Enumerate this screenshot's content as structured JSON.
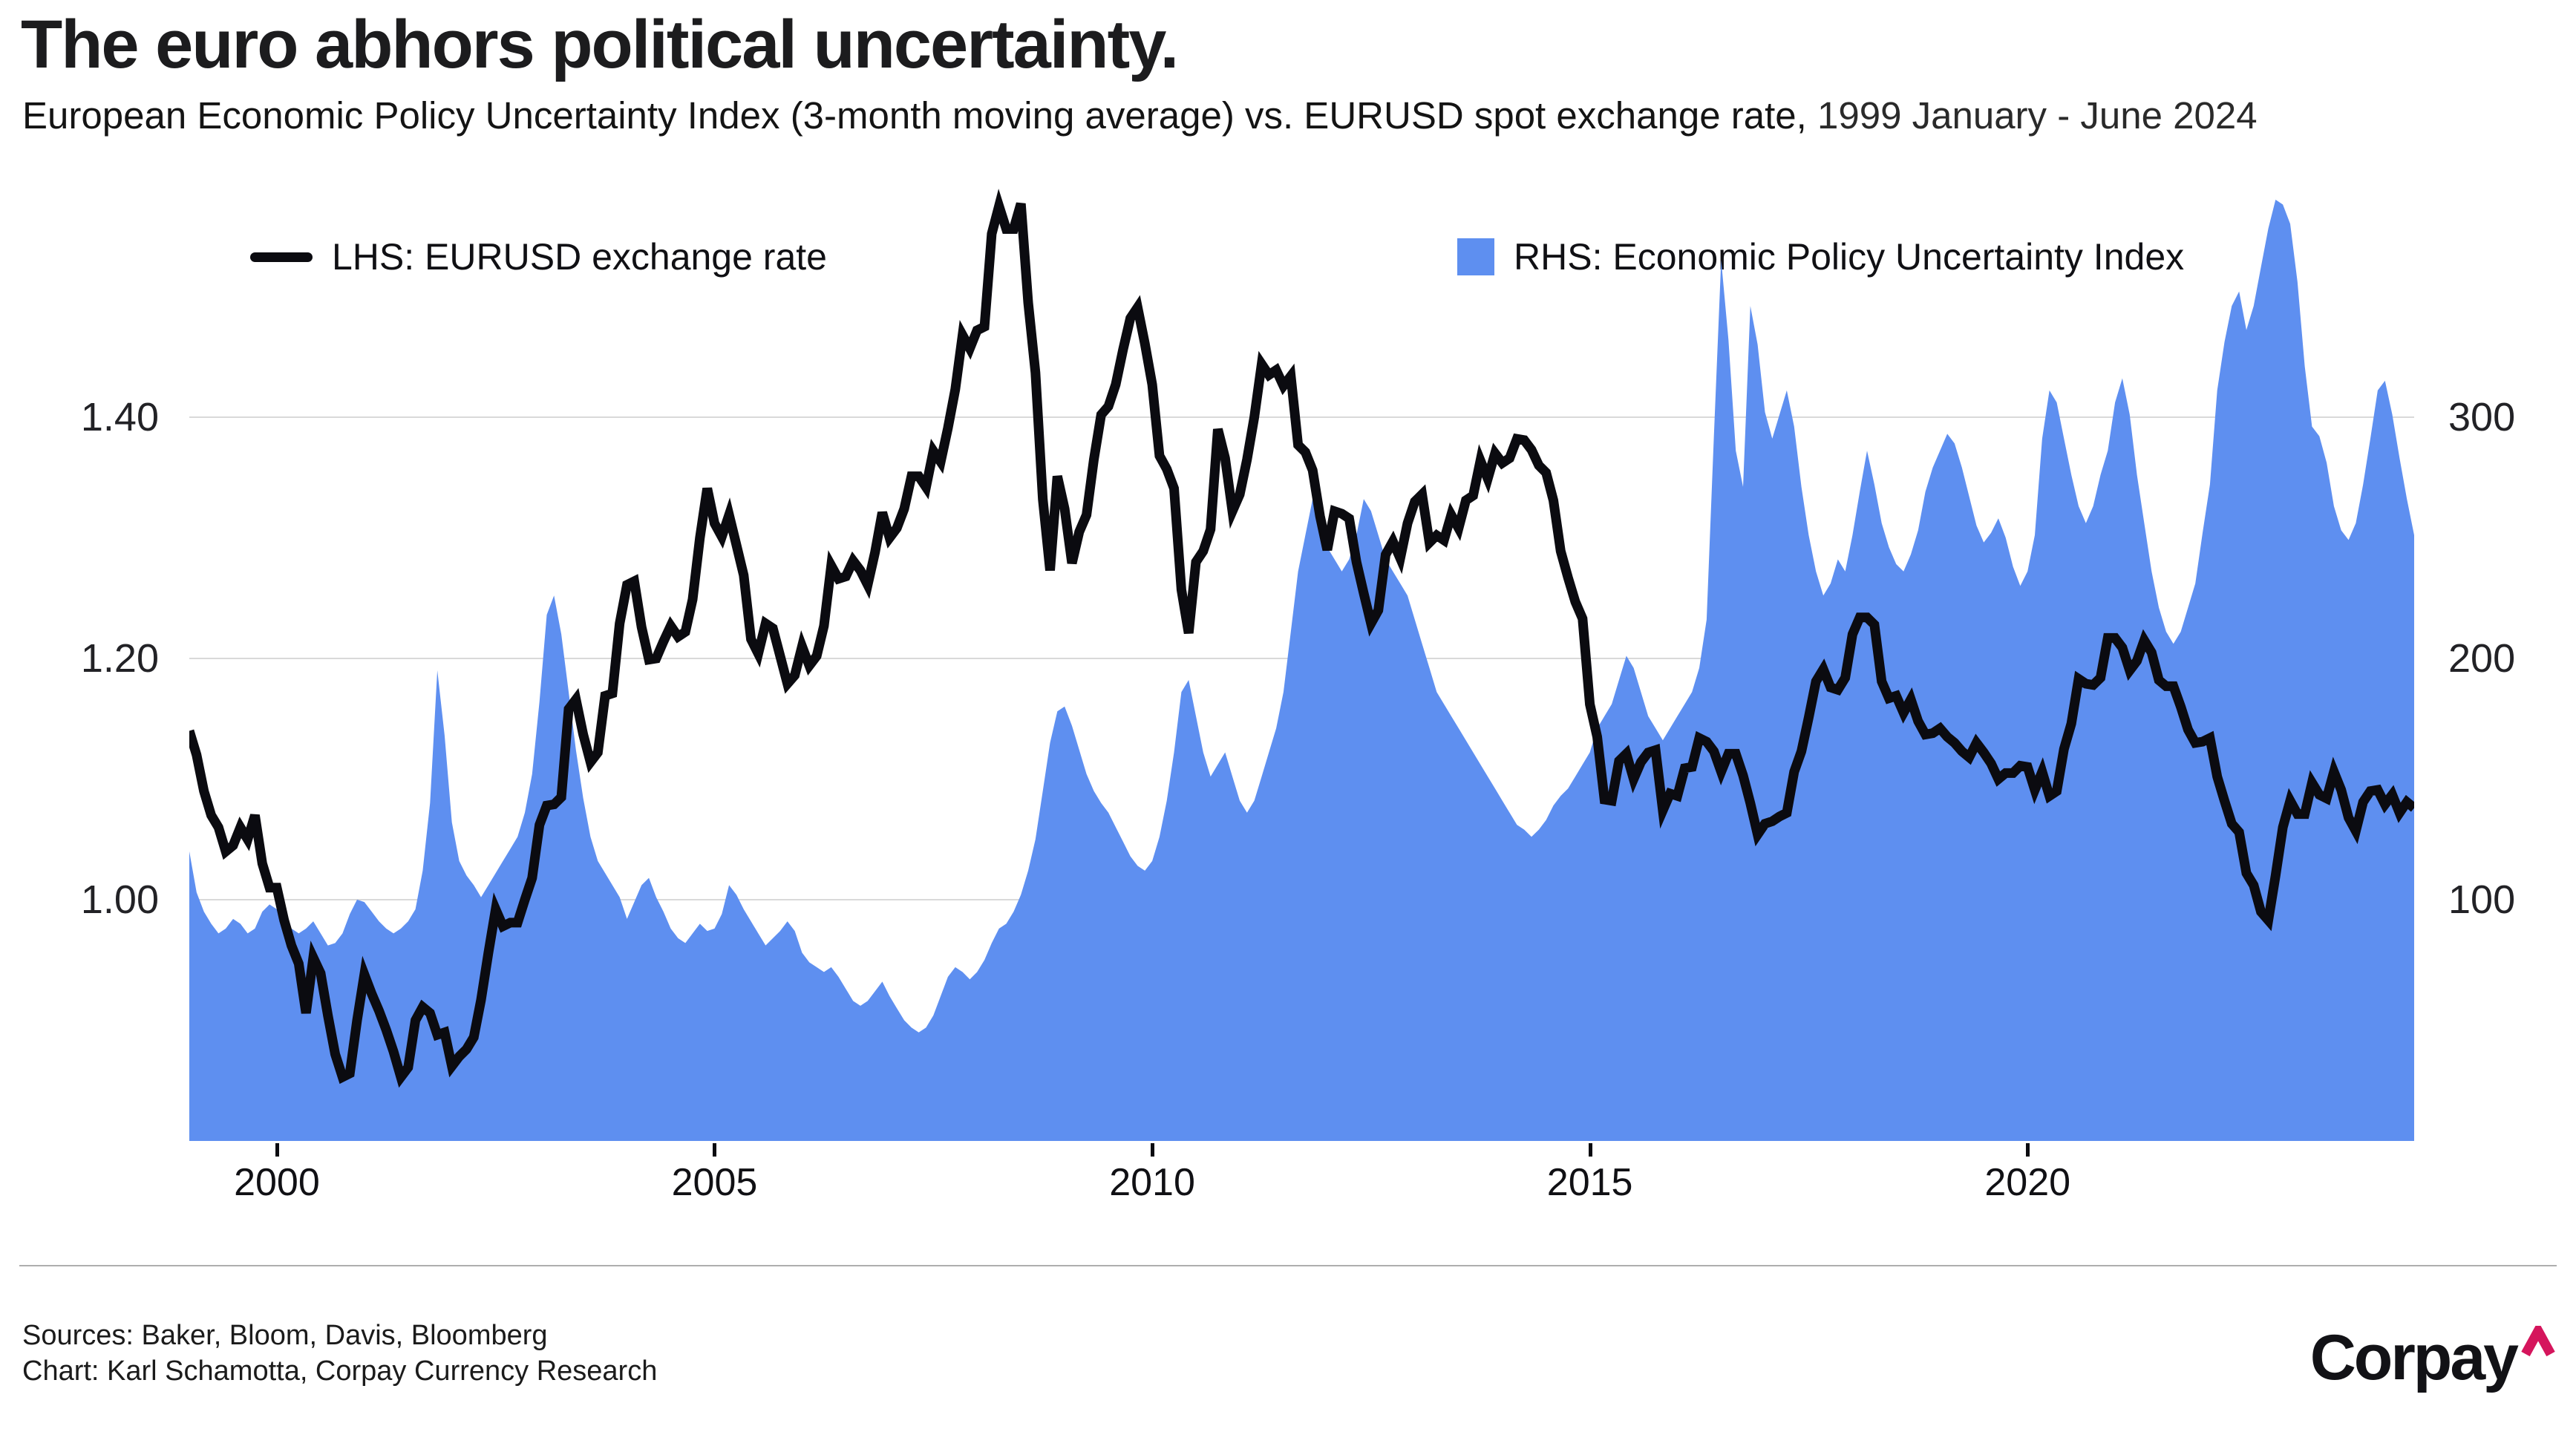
{
  "header": {
    "title": "The euro abhors political uncertainty.",
    "subtitle_main": "European Economic Policy Uncertainty Index (3-month moving average) vs. EURUSD spot exchange rate,",
    "subtitle_period": " 1999 January - June 2024"
  },
  "legend": {
    "lhs_label": "LHS: EURUSD exchange rate",
    "rhs_label": "RHS: Economic Policy Uncertainty Index"
  },
  "footer": {
    "sources": "Sources: Baker, Bloom, Davis, Bloomberg",
    "credit": "Chart: Karl Schamotta, Corpay Currency Research",
    "brand": "Corpay",
    "brand_caret_icon": "caret-up-icon"
  },
  "colors": {
    "area": "#5e8ff0",
    "line": "#0b0b10",
    "grid": "#d9d9d9",
    "separator": "#aeaeae",
    "brand_caret": "#d5155c",
    "text": "#1a1a1a"
  },
  "chart_data": {
    "type": "area+line",
    "title": "The euro abhors political uncertainty.",
    "subtitle": "European Economic Policy Uncertainty Index (3-month moving average) vs. EURUSD spot exchange rate, 1999 January - June 2024",
    "x_start": 1999.0,
    "x_end": 2024.4167,
    "points_per_year": 12,
    "grid": "horizontal-only",
    "legend_position": "top-inside",
    "x_ticks": [
      {
        "value": 2000,
        "label": "2000"
      },
      {
        "value": 2005,
        "label": "2005"
      },
      {
        "value": 2010,
        "label": "2010"
      },
      {
        "value": 2015,
        "label": "2015"
      },
      {
        "value": 2020,
        "label": "2020"
      }
    ],
    "left_axis": {
      "label": "EURUSD exchange rate",
      "min": 0.8,
      "max": 1.6043,
      "gridlines": [
        {
          "value": 1.4,
          "label": "1.40"
        },
        {
          "value": 1.2,
          "label": "1.20"
        },
        {
          "value": 1.0,
          "label": "1.00"
        }
      ]
    },
    "right_axis": {
      "label": "Economic Policy Uncertainty Index",
      "min": 0,
      "max": 402,
      "gridlines": [
        {
          "value": 300,
          "label": "300"
        },
        {
          "value": 200,
          "label": "200"
        },
        {
          "value": 100,
          "label": "100"
        }
      ]
    },
    "series": [
      {
        "name": "Economic Policy Uncertainty Index",
        "axis": "right",
        "type": "area",
        "values": [
          120,
          103,
          95,
          90,
          86,
          88,
          92,
          90,
          86,
          88,
          95,
          98,
          96,
          91,
          88,
          86,
          88,
          91,
          86,
          81,
          82,
          86,
          94,
          100,
          99,
          95,
          91,
          88,
          86,
          88,
          91,
          96,
          112,
          140,
          195,
          168,
          132,
          116,
          110,
          106,
          101,
          106,
          111,
          116,
          121,
          126,
          136,
          152,
          182,
          218,
          226,
          210,
          186,
          162,
          142,
          126,
          116,
          111,
          106,
          101,
          92,
          99,
          106,
          109,
          101,
          95,
          88,
          84,
          82,
          86,
          90,
          87,
          88,
          94,
          106,
          102,
          96,
          91,
          86,
          81,
          84,
          87,
          91,
          87,
          78,
          74,
          72,
          70,
          72,
          68,
          63,
          58,
          56,
          58,
          62,
          66,
          60,
          55,
          50,
          47,
          45,
          47,
          52,
          60,
          68,
          72,
          70,
          67,
          70,
          75,
          82,
          88,
          90,
          95,
          102,
          112,
          125,
          145,
          165,
          178,
          180,
          172,
          162,
          152,
          145,
          140,
          136,
          130,
          124,
          118,
          114,
          112,
          116,
          126,
          141,
          161,
          186,
          191,
          176,
          161,
          151,
          156,
          161,
          151,
          141,
          136,
          141,
          151,
          161,
          171,
          186,
          211,
          236,
          251,
          266,
          256,
          246,
          241,
          236,
          241,
          251,
          266,
          261,
          251,
          241,
          236,
          231,
          226,
          216,
          206,
          196,
          186,
          181,
          176,
          171,
          166,
          161,
          156,
          151,
          146,
          141,
          136,
          131,
          129,
          126,
          129,
          133,
          139,
          143,
          146,
          151,
          156,
          161,
          171,
          176,
          181,
          191,
          201,
          196,
          186,
          176,
          171,
          166,
          171,
          176,
          181,
          186,
          196,
          216,
          292,
          365,
          332,
          286,
          271,
          346,
          330,
          302,
          291,
          301,
          311,
          296,
          271,
          251,
          236,
          226,
          231,
          241,
          236,
          251,
          269,
          286,
          272,
          256,
          246,
          239,
          236,
          243,
          253,
          269,
          279,
          286,
          293,
          289,
          279,
          267,
          255,
          248,
          252,
          258,
          250,
          238,
          230,
          236,
          251,
          291,
          311,
          306,
          291,
          276,
          263,
          256,
          263,
          276,
          286,
          306,
          316,
          301,
          276,
          256,
          236,
          221,
          211,
          206,
          211,
          221,
          231,
          252,
          272,
          311,
          331,
          346,
          352,
          336,
          346,
          362,
          378,
          390,
          388,
          380,
          356,
          321,
          296,
          292,
          281,
          263,
          253,
          249,
          256,
          272,
          291,
          311,
          315,
          301,
          283,
          266,
          251
        ]
      },
      {
        "name": "EURUSD exchange rate",
        "axis": "left",
        "type": "line",
        "values": [
          1.14,
          1.12,
          1.09,
          1.07,
          1.06,
          1.04,
          1.045,
          1.06,
          1.05,
          1.07,
          1.03,
          1.01,
          1.01,
          0.983,
          0.962,
          0.947,
          0.906,
          0.952,
          0.939,
          0.904,
          0.872,
          0.853,
          0.856,
          0.9,
          0.938,
          0.922,
          0.908,
          0.892,
          0.874,
          0.853,
          0.861,
          0.9,
          0.911,
          0.906,
          0.888,
          0.89,
          0.862,
          0.87,
          0.876,
          0.886,
          0.917,
          0.956,
          0.992,
          0.978,
          0.981,
          0.981,
          1.0,
          1.018,
          1.062,
          1.078,
          1.079,
          1.085,
          1.158,
          1.166,
          1.137,
          1.114,
          1.122,
          1.169,
          1.171,
          1.229,
          1.261,
          1.264,
          1.226,
          1.199,
          1.2,
          1.214,
          1.227,
          1.218,
          1.222,
          1.249,
          1.3,
          1.341,
          1.312,
          1.301,
          1.319,
          1.294,
          1.269,
          1.216,
          1.204,
          1.229,
          1.225,
          1.202,
          1.179,
          1.186,
          1.21,
          1.194,
          1.202,
          1.227,
          1.277,
          1.266,
          1.268,
          1.281,
          1.273,
          1.261,
          1.288,
          1.321,
          1.3,
          1.308,
          1.324,
          1.351,
          1.351,
          1.342,
          1.372,
          1.363,
          1.391,
          1.423,
          1.468,
          1.457,
          1.472,
          1.475,
          1.552,
          1.575,
          1.556,
          1.556,
          1.577,
          1.495,
          1.437,
          1.332,
          1.273,
          1.351,
          1.324,
          1.279,
          1.305,
          1.319,
          1.365,
          1.402,
          1.409,
          1.427,
          1.456,
          1.482,
          1.491,
          1.461,
          1.427,
          1.368,
          1.357,
          1.341,
          1.257,
          1.221,
          1.28,
          1.289,
          1.307,
          1.39,
          1.366,
          1.322,
          1.336,
          1.365,
          1.4,
          1.444,
          1.435,
          1.439,
          1.426,
          1.434,
          1.377,
          1.371,
          1.356,
          1.318,
          1.29,
          1.322,
          1.32,
          1.316,
          1.28,
          1.254,
          1.229,
          1.24,
          1.286,
          1.297,
          1.283,
          1.312,
          1.33,
          1.336,
          1.296,
          1.302,
          1.298,
          1.319,
          1.308,
          1.331,
          1.335,
          1.364,
          1.349,
          1.37,
          1.362,
          1.366,
          1.382,
          1.381,
          1.373,
          1.36,
          1.354,
          1.331,
          1.289,
          1.267,
          1.247,
          1.233,
          1.162,
          1.135,
          1.083,
          1.082,
          1.115,
          1.121,
          1.1,
          1.114,
          1.122,
          1.124,
          1.074,
          1.088,
          1.086,
          1.109,
          1.11,
          1.134,
          1.131,
          1.123,
          1.106,
          1.121,
          1.121,
          1.103,
          1.08,
          1.054,
          1.063,
          1.065,
          1.069,
          1.072,
          1.106,
          1.123,
          1.151,
          1.181,
          1.191,
          1.176,
          1.174,
          1.184,
          1.22,
          1.234,
          1.234,
          1.228,
          1.181,
          1.167,
          1.169,
          1.155,
          1.166,
          1.148,
          1.137,
          1.138,
          1.142,
          1.135,
          1.13,
          1.123,
          1.118,
          1.13,
          1.122,
          1.113,
          1.1,
          1.105,
          1.105,
          1.111,
          1.11,
          1.091,
          1.106,
          1.086,
          1.09,
          1.125,
          1.146,
          1.183,
          1.179,
          1.178,
          1.184,
          1.217,
          1.217,
          1.209,
          1.19,
          1.198,
          1.215,
          1.205,
          1.182,
          1.177,
          1.177,
          1.16,
          1.141,
          1.13,
          1.131,
          1.134,
          1.102,
          1.082,
          1.063,
          1.056,
          1.022,
          1.012,
          0.99,
          0.983,
          1.02,
          1.06,
          1.082,
          1.071,
          1.071,
          1.097,
          1.087,
          1.084,
          1.106,
          1.091,
          1.068,
          1.057,
          1.081,
          1.09,
          1.091,
          1.079,
          1.087,
          1.072,
          1.081,
          1.076
        ]
      }
    ]
  }
}
